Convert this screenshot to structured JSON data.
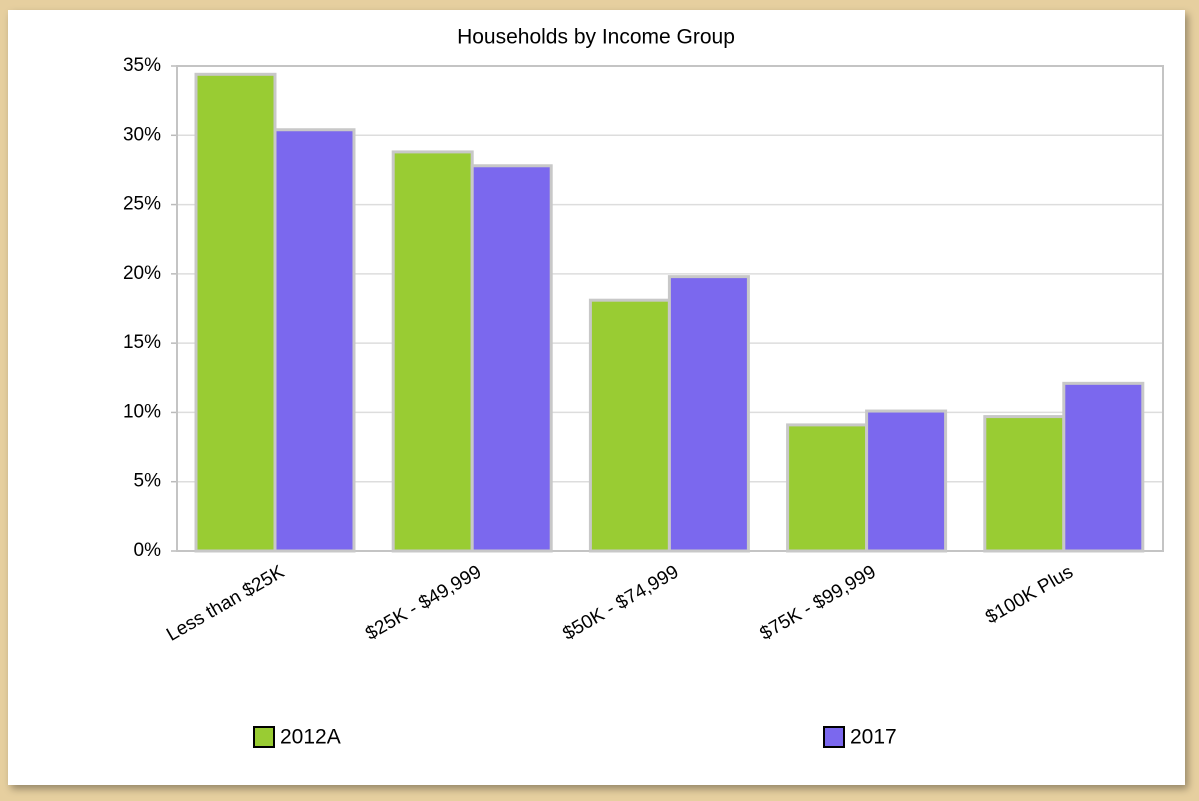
{
  "chart_data": {
    "type": "bar",
    "title": "Households by Income Group",
    "categories": [
      "Less than $25K",
      "$25K - $49,999",
      "$50K - $74,999",
      "$75K - $99,999",
      "$100K Plus"
    ],
    "series": [
      {
        "name": "2012A",
        "color": "#99cc33",
        "values": [
          34.4,
          28.8,
          18.1,
          9.1,
          9.7
        ]
      },
      {
        "name": "2017",
        "color": "#7b68ee",
        "values": [
          30.4,
          27.8,
          19.8,
          10.1,
          12.1
        ]
      }
    ],
    "ylim": [
      0,
      35
    ],
    "yticks": [
      {
        "value": 0,
        "label": "0%"
      },
      {
        "value": 5,
        "label": "5%"
      },
      {
        "value": 10,
        "label": "10%"
      },
      {
        "value": 15,
        "label": "15%"
      },
      {
        "value": 20,
        "label": "20%"
      },
      {
        "value": 25,
        "label": "25%"
      },
      {
        "value": 30,
        "label": "30%"
      },
      {
        "value": 35,
        "label": "35%"
      }
    ],
    "grid": true
  }
}
